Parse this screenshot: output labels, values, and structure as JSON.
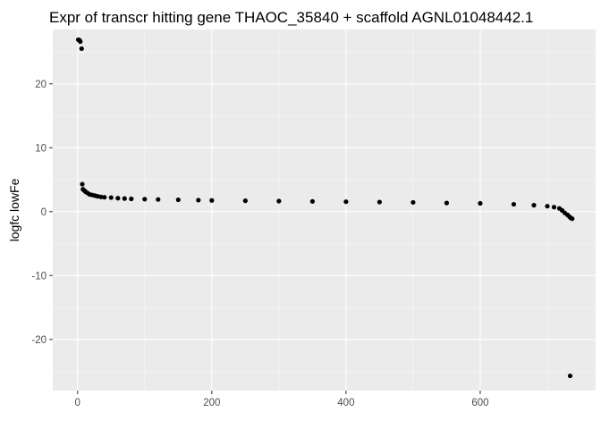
{
  "chart_data": {
    "type": "scatter",
    "title": "Expr of transcr hitting gene THAOC_35840 + scaffold AGNL01048442.1",
    "xlabel": "",
    "ylabel": "logfc lowFe",
    "xlim": [
      -37,
      772
    ],
    "ylim": [
      -28,
      28.5
    ],
    "x_ticks": [
      0,
      200,
      400,
      600
    ],
    "x_tick_labels": [
      "0",
      "200",
      "400",
      "600"
    ],
    "y_ticks": [
      -20,
      -10,
      0,
      10,
      20
    ],
    "y_tick_labels": [
      "-20",
      "-10",
      "0",
      "10",
      "20"
    ],
    "x_minor_ticks": [
      100,
      300,
      500,
      700
    ],
    "y_minor_ticks": [
      -25,
      -15,
      -5,
      5,
      15,
      25
    ],
    "grid": true,
    "legend": "none",
    "background": "#ebebeb",
    "point_color": "#000000",
    "points": [
      [
        1,
        26.9
      ],
      [
        3,
        26.8
      ],
      [
        4,
        26.6
      ],
      [
        6,
        25.5
      ],
      [
        7,
        4.3
      ],
      [
        8,
        3.5
      ],
      [
        10,
        3.3
      ],
      [
        12,
        3.1
      ],
      [
        15,
        2.9
      ],
      [
        18,
        2.7
      ],
      [
        22,
        2.6
      ],
      [
        26,
        2.5
      ],
      [
        30,
        2.4
      ],
      [
        35,
        2.3
      ],
      [
        40,
        2.25
      ],
      [
        50,
        2.2
      ],
      [
        60,
        2.1
      ],
      [
        70,
        2.05
      ],
      [
        80,
        2.0
      ],
      [
        100,
        1.95
      ],
      [
        120,
        1.9
      ],
      [
        150,
        1.85
      ],
      [
        180,
        1.8
      ],
      [
        200,
        1.75
      ],
      [
        250,
        1.7
      ],
      [
        300,
        1.65
      ],
      [
        350,
        1.6
      ],
      [
        400,
        1.55
      ],
      [
        450,
        1.5
      ],
      [
        500,
        1.45
      ],
      [
        550,
        1.35
      ],
      [
        600,
        1.3
      ],
      [
        650,
        1.15
      ],
      [
        680,
        1.0
      ],
      [
        700,
        0.85
      ],
      [
        710,
        0.7
      ],
      [
        718,
        0.5
      ],
      [
        722,
        0.2
      ],
      [
        726,
        -0.2
      ],
      [
        730,
        -0.5
      ],
      [
        733,
        -0.8
      ],
      [
        735,
        -1.0
      ],
      [
        737,
        -1.1
      ],
      [
        734,
        -25.7
      ]
    ]
  }
}
